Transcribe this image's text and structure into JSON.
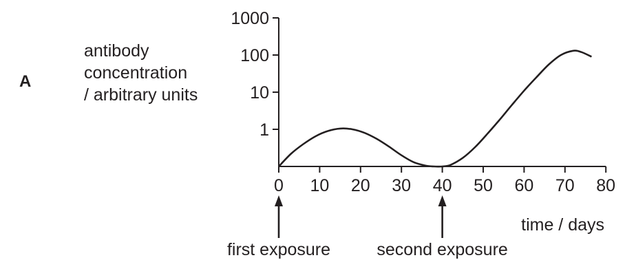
{
  "panel_letter": "A",
  "chart_data": {
    "type": "line",
    "title": "",
    "ylabel_lines": [
      "antibody",
      "concentration",
      "/ arbitrary units"
    ],
    "xlabel": "time / days",
    "y_scale": "log",
    "x_ticks": [
      0,
      10,
      20,
      30,
      40,
      50,
      60,
      70,
      80
    ],
    "x_tick_labels": [
      "0",
      "10",
      "20",
      "30",
      "40",
      "50",
      "60",
      "70",
      "80"
    ],
    "y_ticks": [
      1,
      10,
      100,
      1000
    ],
    "y_tick_labels": [
      "1",
      "10",
      "100",
      "1000"
    ],
    "xlim": [
      0,
      80
    ],
    "ylim_log10": [
      -1,
      3
    ],
    "grid": false,
    "legend": "none",
    "series": [
      {
        "x": [
          0,
          3,
          6,
          9,
          12,
          15,
          18,
          21,
          24,
          27,
          30,
          33,
          36,
          38,
          40,
          42,
          45,
          48,
          51,
          54,
          57,
          60,
          63,
          66,
          69,
          72,
          74,
          76.5
        ],
        "y": [
          0.1,
          0.22,
          0.4,
          0.65,
          0.9,
          1.05,
          1.0,
          0.8,
          0.55,
          0.34,
          0.2,
          0.13,
          0.105,
          0.1,
          0.1,
          0.11,
          0.17,
          0.33,
          0.75,
          1.8,
          4.5,
          11,
          25,
          55,
          100,
          130,
          120,
          90
        ]
      }
    ],
    "annotations": [
      {
        "x": 0,
        "label": "first exposure"
      },
      {
        "x": 40,
        "label": "second exposure"
      }
    ]
  }
}
